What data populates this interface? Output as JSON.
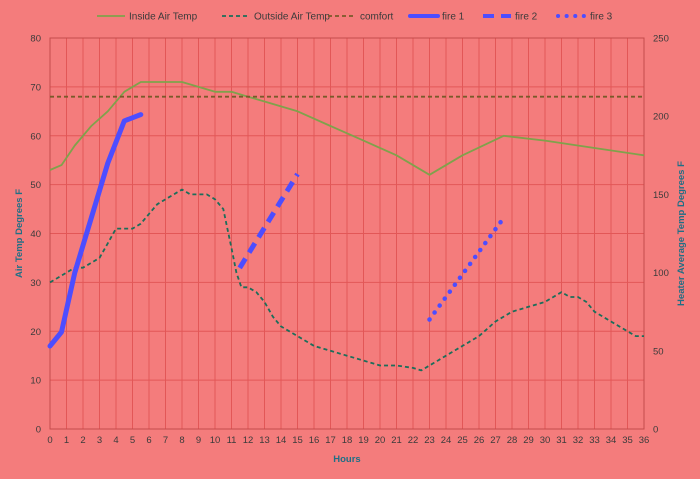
{
  "chart_data": {
    "type": "line",
    "xlabel": "Hours",
    "ylabel": "Air Temp Degrees F",
    "y2label": "Heater Average Temp Degrees F",
    "xlim": [
      0,
      36
    ],
    "ylim": [
      0,
      80
    ],
    "y2lim": [
      0,
      250
    ],
    "x_ticks": [
      0,
      1,
      2,
      3,
      4,
      5,
      6,
      7,
      8,
      9,
      10,
      11,
      12,
      13,
      14,
      15,
      16,
      17,
      18,
      19,
      20,
      21,
      22,
      23,
      24,
      25,
      26,
      27,
      28,
      29,
      30,
      31,
      32,
      33,
      34,
      35,
      36
    ],
    "y_ticks": [
      0,
      10,
      20,
      30,
      40,
      50,
      60,
      70,
      80
    ],
    "y2_ticks": [
      0,
      50,
      100,
      150,
      200,
      250
    ],
    "grid": "vertical and horizontal major gridlines",
    "legend_position": "top",
    "series": [
      {
        "name": "Inside Air Temp",
        "axis": "left",
        "color": "#7fa24b",
        "style": "solid",
        "x": [
          0,
          0.7,
          1.5,
          2.5,
          3.5,
          4.5,
          5.5,
          6,
          7,
          8,
          9,
          10,
          11,
          12,
          13,
          15,
          17,
          19,
          21,
          23,
          25,
          27.5,
          30,
          33,
          36
        ],
        "y": [
          53,
          54,
          58,
          62,
          65,
          69,
          71,
          71,
          71,
          71,
          70,
          69,
          69,
          68,
          67,
          65,
          62,
          59,
          56,
          52,
          56,
          60,
          59,
          57.5,
          56
        ]
      },
      {
        "name": "Outside Air Temp",
        "axis": "left",
        "color": "#1b6e5a",
        "style": "dashed",
        "x": [
          0,
          0.5,
          1,
          1.5,
          2,
          2.5,
          3,
          3.5,
          4,
          4.5,
          5,
          5.5,
          6,
          6.5,
          7,
          7.5,
          8,
          8.5,
          9,
          9.5,
          10,
          10.5,
          11,
          11.3,
          11.6,
          12,
          12.5,
          13,
          13.5,
          14,
          15,
          16,
          17,
          18,
          19,
          20,
          21,
          22,
          22.5,
          23,
          23.5,
          24,
          25,
          26,
          27,
          28,
          29,
          30,
          30.5,
          31,
          31.5,
          32,
          32.5,
          33,
          34,
          35,
          35.5,
          36
        ],
        "y": [
          30,
          31,
          32,
          33,
          33,
          34,
          35,
          38,
          41,
          41,
          41,
          42,
          44,
          46,
          47,
          48,
          49,
          48,
          48,
          48,
          47,
          45,
          37,
          32,
          29,
          29,
          28,
          26,
          23,
          21,
          19,
          17,
          16,
          15,
          14,
          13,
          13,
          12.5,
          12,
          13,
          14,
          15,
          17,
          19,
          22,
          24,
          25,
          26,
          27,
          28,
          27,
          27,
          26,
          24,
          22,
          20,
          19,
          19
        ]
      },
      {
        "name": "comfort",
        "axis": "left",
        "color": "#7a5a2a",
        "style": "dashed",
        "x": [
          0,
          36
        ],
        "y": [
          68,
          68
        ]
      },
      {
        "name": "fire 1",
        "axis": "right",
        "color": "#4d4dff",
        "style": "solid-thick",
        "x": [
          0,
          0.7,
          1.5,
          2.5,
          3.5,
          4.5,
          5.5
        ],
        "y": [
          53,
          62,
          100,
          135,
          170,
          197,
          201
        ]
      },
      {
        "name": "fire 2",
        "axis": "right",
        "color": "#4d4dff",
        "style": "dashed-thick",
        "x": [
          11.5,
          15
        ],
        "y": [
          103,
          163
        ]
      },
      {
        "name": "fire 3",
        "axis": "right",
        "color": "#4d4dff",
        "style": "dotted-thick",
        "x": [
          23,
          27.5
        ],
        "y": [
          70,
          135
        ]
      }
    ]
  }
}
